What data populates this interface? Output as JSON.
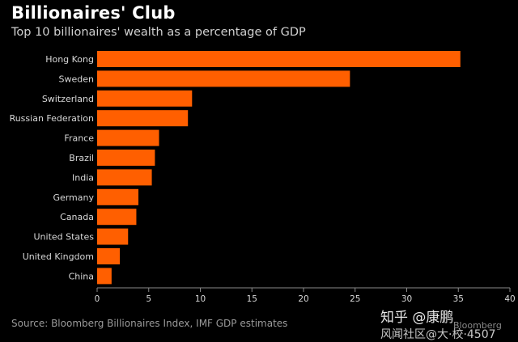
{
  "colors": {
    "bar": "#ff5f00",
    "axis": "#8a8a8a",
    "label": "#d8d8d8",
    "background": "#000000"
  },
  "chart_data": {
    "type": "bar",
    "orientation": "horizontal",
    "title": "Billionaires' Club",
    "subtitle": "Top 10 billionaires' wealth as a percentage of GDP",
    "categories": [
      "Hong Kong",
      "Sweden",
      "Switzerland",
      "Russian Federation",
      "France",
      "Brazil",
      "India",
      "Germany",
      "Canada",
      "United States",
      "United Kingdom",
      "China"
    ],
    "values": [
      35.2,
      24.5,
      9.2,
      8.8,
      6.0,
      5.6,
      5.3,
      4.0,
      3.8,
      3.0,
      2.2,
      1.4
    ],
    "xlim": [
      0,
      40
    ],
    "xticks": [
      "0",
      "5",
      "10",
      "15",
      "20",
      "25",
      "30",
      "35",
      "40"
    ],
    "xlabel": "",
    "ylabel": "",
    "grid": false
  },
  "source": "Source: Bloomberg Billionaires Index, IMF GDP estimates",
  "watermark": {
    "brand": "知乎 @康鹏",
    "community": "风闻社区@大·校·4507",
    "logo": "Bloomberg"
  }
}
